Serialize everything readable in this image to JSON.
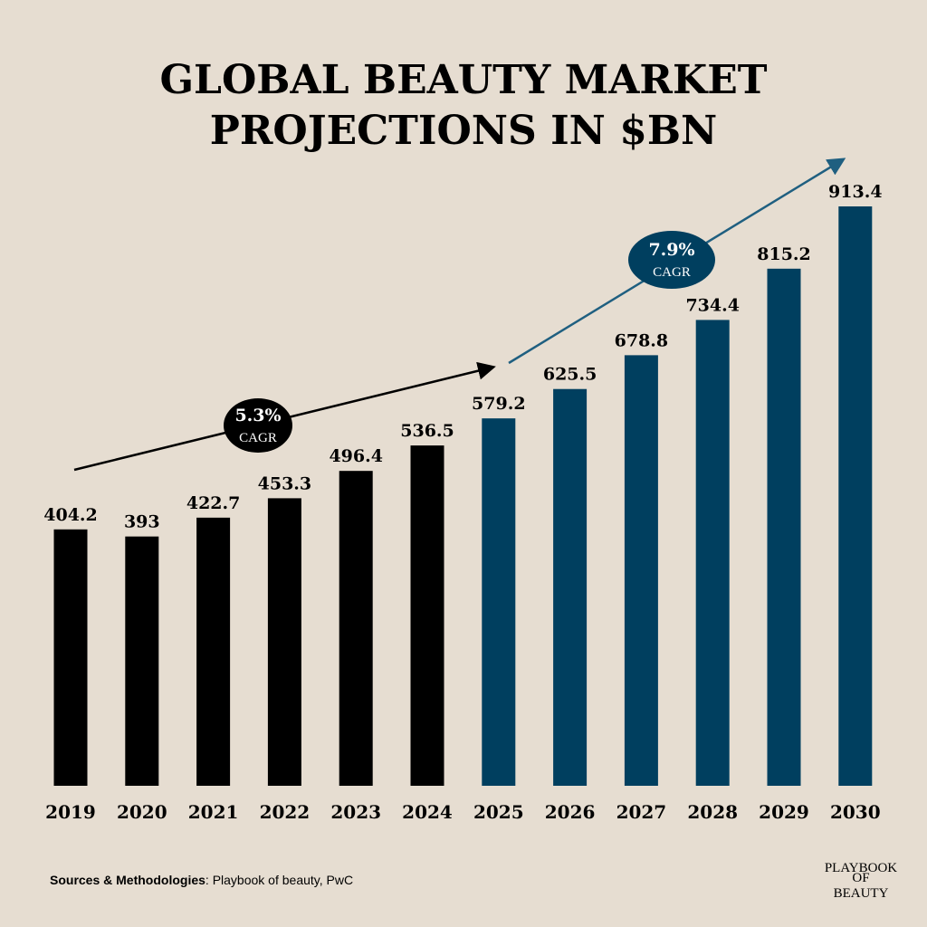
{
  "chart_data": {
    "type": "bar",
    "title": [
      "GLOBAL BEAUTY MARKET",
      "PROJECTIONS IN $BN"
    ],
    "categories": [
      "2019",
      "2020",
      "2021",
      "2022",
      "2023",
      "2024",
      "2025",
      "2026",
      "2027",
      "2028",
      "2029",
      "2030"
    ],
    "values": [
      404.2,
      393,
      422.7,
      453.3,
      496.4,
      536.5,
      579.2,
      625.5,
      678.8,
      734.4,
      815.2,
      913.4
    ],
    "colors": [
      "#000000",
      "#000000",
      "#000000",
      "#000000",
      "#000000",
      "#000000",
      "#003f5f",
      "#003f5f",
      "#003f5f",
      "#003f5f",
      "#003f5f",
      "#003f5f"
    ],
    "annotations": [
      {
        "text": "5.3%",
        "subtext": "CAGR"
      },
      {
        "text": "7.9%",
        "subtext": "CAGR"
      }
    ],
    "source_label": "Sources & Methodologies",
    "source": ": Playbook of beauty, PwC",
    "logo": [
      "PLAYBOOK",
      "OF",
      "BEAUTY"
    ]
  }
}
